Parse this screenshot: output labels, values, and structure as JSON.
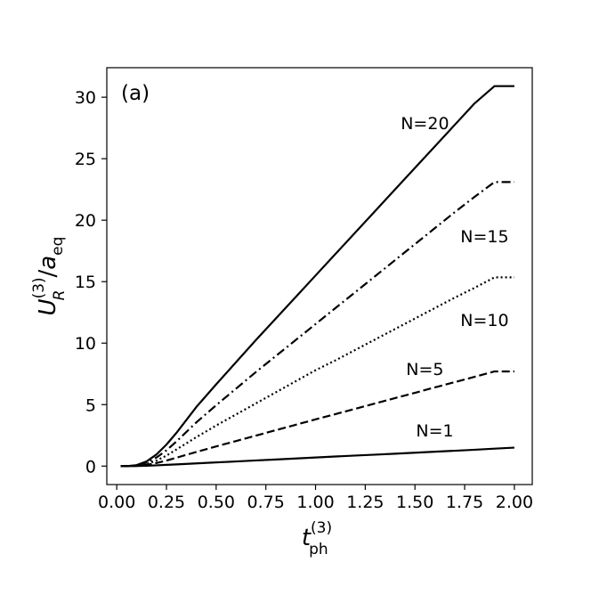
{
  "chart_data": {
    "type": "line",
    "panel_label": "(a)",
    "xlabel": {
      "base": "t",
      "subscript": "ph",
      "superscript": "(3)"
    },
    "ylabel": {
      "base": "U",
      "base_subscript": "R",
      "base_superscript": "(3)",
      "slash": "/",
      "denominator": "a",
      "denominator_subscript": "eq"
    },
    "xlim": [
      -0.05,
      2.09
    ],
    "ylim": [
      -1.5,
      32.4
    ],
    "x_ticks": [
      0.0,
      0.25,
      0.5,
      0.75,
      1.0,
      1.25,
      1.5,
      1.75,
      2.0
    ],
    "x_tick_labels": [
      "0.00",
      "0.25",
      "0.50",
      "0.75",
      "1.00",
      "1.25",
      "1.50",
      "1.75",
      "2.00"
    ],
    "y_ticks": [
      0,
      5,
      10,
      15,
      20,
      25,
      30
    ],
    "y_tick_labels": [
      "0",
      "5",
      "10",
      "15",
      "20",
      "25",
      "30"
    ],
    "grid": false,
    "legend": "inline labels near curve ends",
    "x": [
      0.02,
      0.05,
      0.1,
      0.15,
      0.2,
      0.25,
      0.3,
      0.4,
      0.5,
      0.6,
      0.7,
      0.8,
      0.9,
      1.0,
      1.1,
      1.2,
      1.3,
      1.4,
      1.5,
      1.6,
      1.7,
      1.8,
      1.9,
      2.0
    ],
    "series": [
      {
        "name": "N=1",
        "style": "solid",
        "values": [
          0.0,
          0.0,
          0.01,
          0.03,
          0.06,
          0.1,
          0.14,
          0.22,
          0.3,
          0.38,
          0.46,
          0.54,
          0.62,
          0.7,
          0.78,
          0.86,
          0.93,
          1.01,
          1.09,
          1.17,
          1.25,
          1.33,
          1.42,
          1.5
        ],
        "label_pos": {
          "x": 1.6,
          "y": 2.4
        }
      },
      {
        "name": "N=5",
        "style": "dashed",
        "values": [
          0.0,
          0.0,
          0.02,
          0.1,
          0.25,
          0.45,
          0.68,
          1.15,
          1.6,
          2.04,
          2.48,
          2.92,
          3.36,
          3.8,
          4.23,
          4.66,
          5.1,
          5.53,
          5.96,
          6.4,
          6.83,
          7.26,
          7.7,
          7.7
        ],
        "label_pos": {
          "x": 1.55,
          "y": 7.4
        }
      },
      {
        "name": "N=10",
        "style": "dotted",
        "values": [
          0.0,
          0.0,
          0.04,
          0.18,
          0.45,
          0.85,
          1.35,
          2.35,
          3.3,
          4.2,
          5.1,
          6.0,
          6.9,
          7.8,
          8.6,
          9.45,
          10.3,
          11.15,
          12.0,
          12.85,
          13.7,
          14.5,
          15.35,
          15.35
        ],
        "label_pos": {
          "x": 1.85,
          "y": 11.4
        }
      },
      {
        "name": "N=15",
        "style": "dashdot",
        "values": [
          0.0,
          0.0,
          0.06,
          0.28,
          0.7,
          1.28,
          2.0,
          3.55,
          4.95,
          6.3,
          7.65,
          8.95,
          10.25,
          11.55,
          12.85,
          14.15,
          15.45,
          16.75,
          18.05,
          19.35,
          20.65,
          21.9,
          23.1,
          23.1
        ],
        "label_pos": {
          "x": 1.85,
          "y": 18.2
        }
      },
      {
        "name": "N=20",
        "style": "solid",
        "values": [
          0.0,
          0.0,
          0.08,
          0.38,
          0.95,
          1.75,
          2.7,
          4.8,
          6.65,
          8.45,
          10.25,
          12.0,
          13.75,
          15.5,
          17.25,
          19.0,
          20.75,
          22.5,
          24.25,
          26.0,
          27.75,
          29.5,
          30.9,
          30.9
        ],
        "label_pos": {
          "x": 1.55,
          "y": 27.4
        }
      }
    ]
  }
}
